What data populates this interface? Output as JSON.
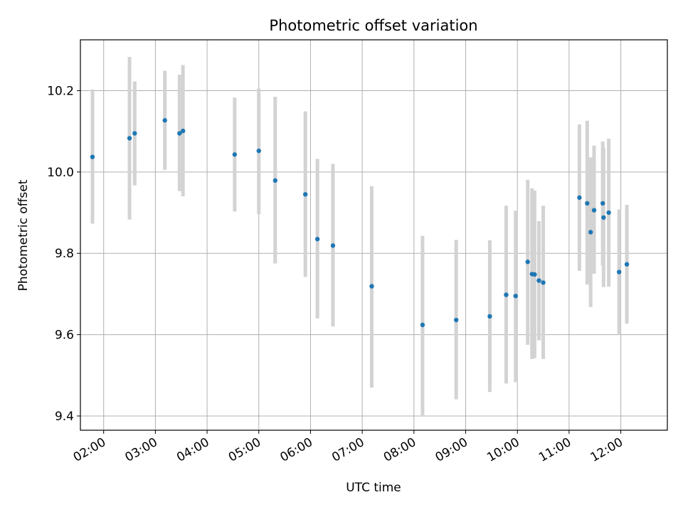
{
  "chart_data": {
    "type": "scatter",
    "title": "Photometric offset variation",
    "xlabel": "UTC time",
    "ylabel": "Photometric offset",
    "x_tick_labels": [
      "02:00",
      "03:00",
      "04:00",
      "05:00",
      "06:00",
      "07:00",
      "08:00",
      "09:00",
      "10:00",
      "11:00",
      "12:00"
    ],
    "y_tick_labels": [
      "9.4",
      "9.6",
      "9.8",
      "10.0",
      "10.2"
    ],
    "x_ticks": [
      "02:00",
      "03:00",
      "04:00",
      "05:00",
      "06:00",
      "07:00",
      "08:00",
      "09:00",
      "10:00",
      "11:00",
      "12:00"
    ],
    "y_ticks": [
      9.4,
      9.6,
      9.8,
      10.0,
      10.2
    ],
    "xlim": [
      "01:33",
      "12:54"
    ],
    "ylim": [
      9.365,
      10.325
    ],
    "grid": true,
    "colors": {
      "point": "#1f77b4",
      "errorbar": "#d3d3d3",
      "grid": "#b0b0b0"
    },
    "points": [
      {
        "time": "01:47",
        "value": 10.037,
        "low": 9.873,
        "high": 10.203
      },
      {
        "time": "02:30",
        "value": 10.083,
        "low": 9.883,
        "high": 10.283
      },
      {
        "time": "02:36",
        "value": 10.095,
        "low": 9.967,
        "high": 10.223
      },
      {
        "time": "03:11",
        "value": 10.127,
        "low": 10.005,
        "high": 10.249
      },
      {
        "time": "03:28",
        "value": 10.095,
        "low": 9.953,
        "high": 10.239
      },
      {
        "time": "03:32",
        "value": 10.101,
        "low": 9.94,
        "high": 10.263
      },
      {
        "time": "04:32",
        "value": 10.043,
        "low": 9.903,
        "high": 10.183
      },
      {
        "time": "05:00",
        "value": 10.052,
        "low": 9.896,
        "high": 10.205
      },
      {
        "time": "05:19",
        "value": 9.979,
        "low": 9.775,
        "high": 10.185
      },
      {
        "time": "05:54",
        "value": 9.945,
        "low": 9.742,
        "high": 10.149
      },
      {
        "time": "06:08",
        "value": 9.835,
        "low": 9.64,
        "high": 10.032
      },
      {
        "time": "06:26",
        "value": 9.819,
        "low": 9.62,
        "high": 10.02
      },
      {
        "time": "07:11",
        "value": 9.719,
        "low": 9.47,
        "high": 9.965
      },
      {
        "time": "08:10",
        "value": 9.624,
        "low": 9.402,
        "high": 9.843
      },
      {
        "time": "08:49",
        "value": 9.636,
        "low": 9.441,
        "high": 9.833
      },
      {
        "time": "09:28",
        "value": 9.645,
        "low": 9.459,
        "high": 9.832
      },
      {
        "time": "09:47",
        "value": 9.698,
        "low": 9.48,
        "high": 9.917
      },
      {
        "time": "09:58",
        "value": 9.695,
        "low": 9.483,
        "high": 9.905
      },
      {
        "time": "10:12",
        "value": 9.779,
        "low": 9.575,
        "high": 9.981
      },
      {
        "time": "10:17",
        "value": 9.749,
        "low": 9.54,
        "high": 9.96
      },
      {
        "time": "10:20",
        "value": 9.748,
        "low": 9.542,
        "high": 9.954
      },
      {
        "time": "10:25",
        "value": 9.733,
        "low": 9.586,
        "high": 9.879
      },
      {
        "time": "10:30",
        "value": 9.728,
        "low": 9.54,
        "high": 9.917
      },
      {
        "time": "11:12",
        "value": 9.937,
        "low": 9.757,
        "high": 10.117
      },
      {
        "time": "11:21",
        "value": 9.923,
        "low": 9.723,
        "high": 10.126
      },
      {
        "time": "11:25",
        "value": 9.852,
        "low": 9.668,
        "high": 10.036
      },
      {
        "time": "11:29",
        "value": 9.906,
        "low": 9.75,
        "high": 10.065
      },
      {
        "time": "11:39",
        "value": 9.923,
        "low": 9.77,
        "high": 10.075
      },
      {
        "time": "11:40",
        "value": 9.888,
        "low": 9.717,
        "high": 10.06
      },
      {
        "time": "11:46",
        "value": 9.9,
        "low": 9.718,
        "high": 10.082
      },
      {
        "time": "11:58",
        "value": 9.754,
        "low": 9.6,
        "high": 9.908
      },
      {
        "time": "12:07",
        "value": 9.773,
        "low": 9.627,
        "high": 9.919
      }
    ]
  }
}
